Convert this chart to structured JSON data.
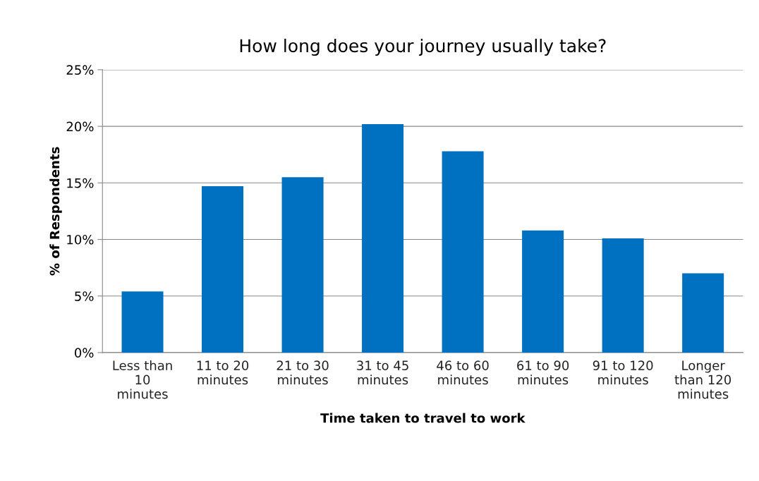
{
  "chart_data": {
    "type": "bar",
    "title": "How long does your journey usually take?",
    "xlabel": "Time taken to travel to work",
    "ylabel": "% of Respondents",
    "categories": [
      "Less than\n10\nminutes",
      "11 to 20\nminutes",
      "21 to 30\nminutes",
      "31 to 45\nminutes",
      "46 to 60\nminutes",
      "61 to 90\nminutes",
      "91 to 120\nminutes",
      "Longer\nthan 120\nminutes"
    ],
    "values": [
      5.4,
      14.7,
      15.5,
      20.2,
      17.8,
      10.8,
      10.1,
      7.0
    ],
    "color": "#0070c0",
    "ylim": [
      0,
      25
    ],
    "yticks": [
      {
        "value": 0,
        "label": "0%"
      },
      {
        "value": 5,
        "label": "5%"
      },
      {
        "value": 10,
        "label": "10%"
      },
      {
        "value": 15,
        "label": "15%"
      },
      {
        "value": 20,
        "label": "20%"
      },
      {
        "value": 25,
        "label": "25%"
      }
    ],
    "grid": "y"
  }
}
